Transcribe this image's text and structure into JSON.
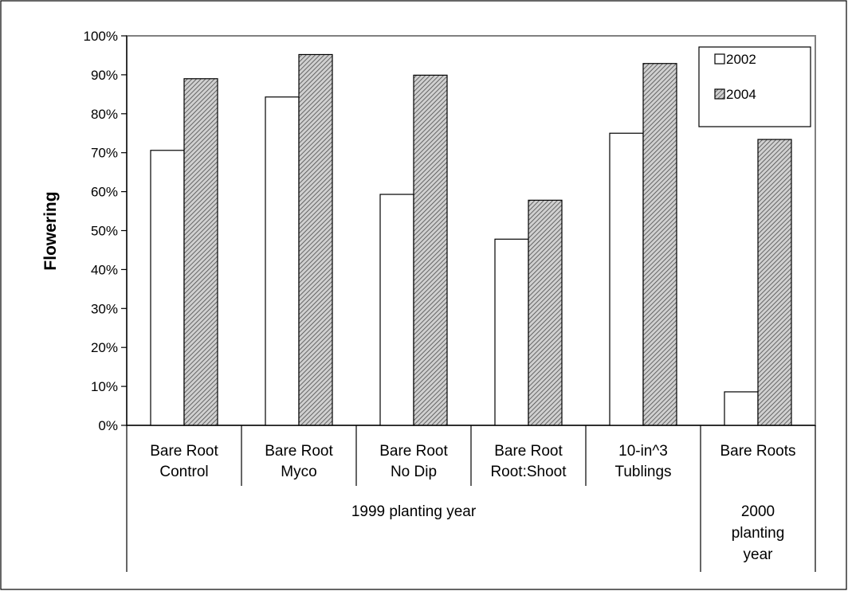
{
  "chart_data": {
    "type": "bar",
    "title": "",
    "xlabel": "",
    "ylabel": "Flowering",
    "ylim": [
      0,
      100
    ],
    "y_ticks": [
      "0%",
      "10%",
      "20%",
      "30%",
      "40%",
      "50%",
      "60%",
      "70%",
      "80%",
      "90%",
      "100%"
    ],
    "categories": [
      [
        "Bare Root",
        "Control"
      ],
      [
        "Bare Root",
        "Myco"
      ],
      [
        "Bare Root",
        "No Dip"
      ],
      [
        "Bare Root",
        "Root:Shoot"
      ],
      [
        "10-in^3",
        "Tublings"
      ],
      [
        "Bare Roots"
      ]
    ],
    "groups": [
      {
        "label": [
          "1999 planting year"
        ],
        "span": [
          0,
          4
        ]
      },
      {
        "label": [
          "2000",
          "planting",
          "year"
        ],
        "span": [
          5,
          5
        ]
      }
    ],
    "series": [
      {
        "name": "2002",
        "pattern": "none",
        "fill": "#ffffff",
        "values": [
          70.6,
          84.3,
          59.3,
          47.8,
          75.0,
          8.6
        ]
      },
      {
        "name": "2004",
        "pattern": "diagonal-hatch",
        "fill": "#bdbdbd",
        "values": [
          89.0,
          95.2,
          89.9,
          57.8,
          92.9,
          73.4
        ]
      }
    ],
    "grid": false,
    "legend_position": "top-right",
    "colors": {
      "border": "#000000",
      "plot_border": "#808080",
      "hatch_line": "#4a4a4a"
    }
  }
}
